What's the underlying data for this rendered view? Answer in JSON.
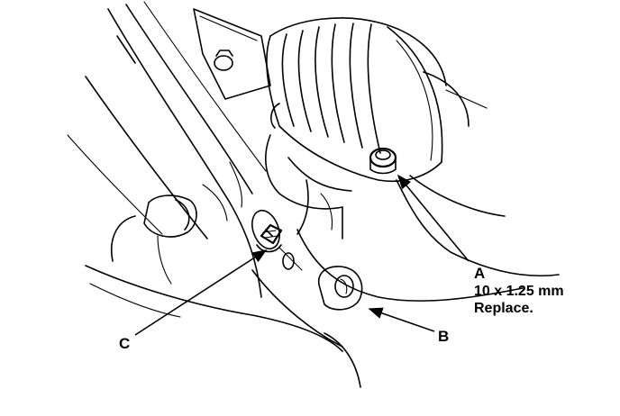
{
  "labels": {
    "a": "A",
    "a_size": "10 x 1.25 mm",
    "a_note": "Replace.",
    "b": "B",
    "c": "C"
  }
}
